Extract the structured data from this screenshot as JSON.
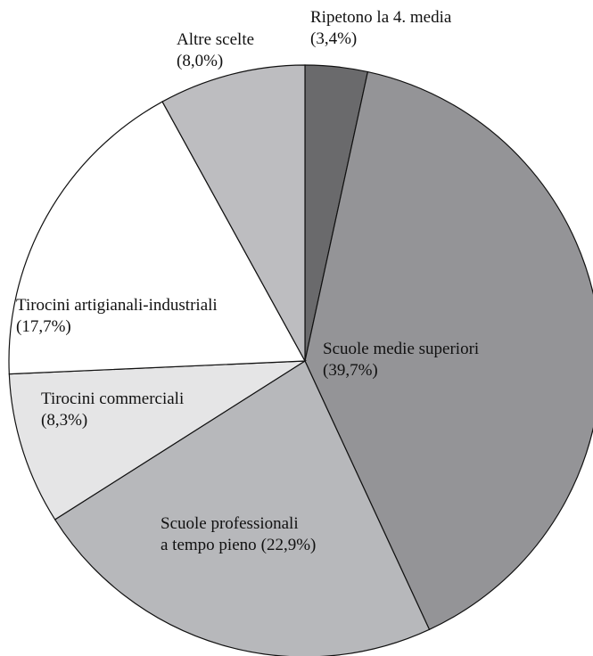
{
  "chart_data": {
    "type": "pie",
    "categories": [
      "Ripetono la 4. media",
      "Scuole medie superiori",
      "Scuole professionali\na tempo pieno",
      "Tirocini commerciali",
      "Tirocini artigianali-industriali",
      "Altre scelte"
    ],
    "values": [
      3.4,
      39.7,
      22.9,
      8.3,
      17.7,
      8.0
    ],
    "value_labels": [
      "(3,4%)",
      "(39,7%)",
      "(22,9%)",
      "(8,3%)",
      "(17,7%)",
      "(8,0%)"
    ],
    "colors": [
      "#6a6a6c",
      "#949497",
      "#b7b8bb",
      "#e5e5e6",
      "#ffffff",
      "#bdbdc0"
    ]
  }
}
